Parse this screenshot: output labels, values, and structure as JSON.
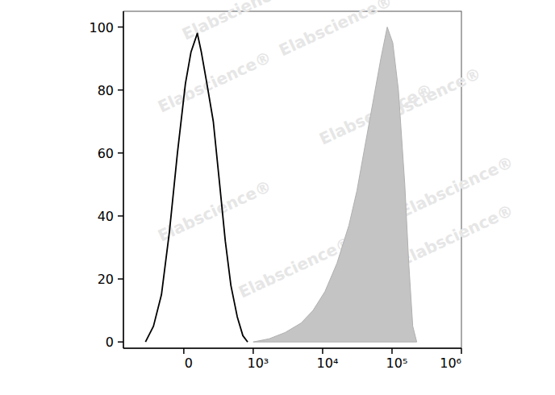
{
  "chart_data": {
    "type": "area",
    "log": "x",
    "xlim": [
      -870,
      1000000
    ],
    "xticks": [
      {
        "value": 0,
        "label": "0"
      },
      {
        "value": 1000,
        "label": "10³"
      },
      {
        "value": 10000,
        "label": "10⁴"
      },
      {
        "value": 100000,
        "label": "10⁵"
      },
      {
        "value": 1000000,
        "label": "10⁶"
      }
    ],
    "ylim": [
      -2,
      105
    ],
    "yticks": [
      0,
      20,
      40,
      60,
      80,
      100
    ],
    "annotations": [
      "Elabscience®"
    ],
    "series": [
      {
        "type": "area",
        "color": "#c4c4c4",
        "x": [
          1000,
          1698,
          2884,
          4894,
          7278,
          10800,
          16100,
          23900,
          31200,
          40600,
          53000,
          69000,
          85300,
          102600,
          123600,
          152800,
          174200,
          199000,
          227000
        ],
        "values": [
          0,
          1,
          3,
          6,
          10,
          16,
          25,
          37,
          48,
          62,
          76,
          90,
          100,
          95,
          80,
          50,
          25,
          5,
          0
        ]
      },
      {
        "type": "line",
        "color": "#000000",
        "line_style": "solid",
        "x": [
          -552,
          -437,
          -322,
          -207,
          -92,
          23,
          103,
          195,
          253,
          333,
          425,
          517,
          598,
          678,
          770,
          851,
          920
        ],
        "values": [
          0,
          5,
          15,
          35,
          60,
          82,
          92,
          98,
          92,
          82,
          70,
          50,
          32,
          18,
          8,
          2,
          0
        ]
      }
    ]
  }
}
